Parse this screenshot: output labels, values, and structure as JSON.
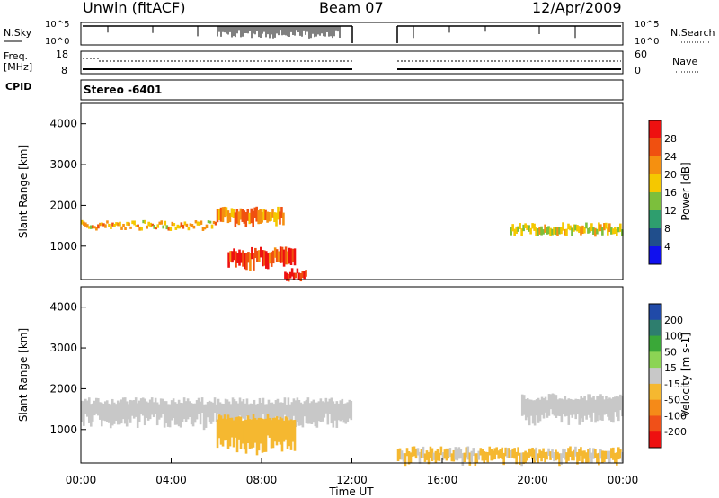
{
  "header": {
    "title": "Unwin (fitACF)",
    "beam": "Beam 07",
    "date": "12/Apr/2009",
    "stereo": "Stereo -6401"
  },
  "strips": {
    "n_sky": "N.Sky",
    "n_search": "N.Search",
    "freq": "Freq.",
    "freq_unit": "[MHz]",
    "cpid": "CPID",
    "nave": "Nave",
    "left_ticks_top": [
      "10^5",
      "10^0"
    ],
    "right_ticks_top": [
      "10^5",
      "10^0"
    ],
    "left_ticks_freq": [
      "18",
      "8"
    ],
    "right_ticks_nave": [
      "60",
      "0"
    ]
  },
  "time_axis": {
    "ticks": [
      "00:00",
      "04:00",
      "08:00",
      "12:00",
      "16:00",
      "20:00",
      "00:00"
    ],
    "label": "Time UT"
  },
  "panels": {
    "range_label": "Slant Range [km]",
    "range_ticks": [
      "4000",
      "3000",
      "2000",
      "1000"
    ]
  },
  "colorbars": {
    "power": {
      "label": "Power [dB]",
      "ticks": [
        "28",
        "24",
        "20",
        "16",
        "12",
        "8",
        "4"
      ],
      "colors": [
        "#ee1010",
        "#f05010",
        "#f59010",
        "#f5c800",
        "#7cbf3c",
        "#2e9e6e",
        "#204e8c",
        "#1010ee"
      ]
    },
    "velocity": {
      "label": "Velocity [m s-1]",
      "ticks": [
        "200",
        "100",
        "50",
        "15",
        "-15",
        "-50",
        "-100",
        "-200"
      ],
      "colors": [
        "#204aa8",
        "#2e7e6e",
        "#3aa838",
        "#8cd454",
        "#c8c8c8",
        "#f5b830",
        "#f58a18",
        "#f05018",
        "#ee1010"
      ]
    }
  },
  "chart_data": [
    {
      "type": "heatmap",
      "title": "Power",
      "xlabel": "Time UT",
      "ylabel": "Slant Range [km]",
      "x_range_hours": [
        0,
        24
      ],
      "ylim": [
        180,
        4500
      ],
      "colorbar": "Power [dB]",
      "data_gap_hours": [
        12,
        14
      ],
      "features": [
        {
          "time_start": "00:00",
          "time_end": "06:00",
          "range_km_start": 1450,
          "range_km_end": 1550,
          "power_db": 20
        },
        {
          "time_start": "06:00",
          "time_end": "09:00",
          "range_km_start": 1550,
          "range_km_end": 1900,
          "power_db": 22
        },
        {
          "time_start": "06:30",
          "time_end": "09:30",
          "range_km_start": 500,
          "range_km_end": 900,
          "power_db": 28
        },
        {
          "time_start": "09:00",
          "time_end": "10:00",
          "range_km_start": 200,
          "range_km_end": 400,
          "power_db": 28
        },
        {
          "time_start": "19:00",
          "time_end": "24:00",
          "range_km_start": 1300,
          "range_km_end": 1500,
          "power_db": 18
        }
      ]
    },
    {
      "type": "heatmap",
      "title": "Velocity",
      "xlabel": "Time UT",
      "ylabel": "Slant Range [km]",
      "x_range_hours": [
        0,
        24
      ],
      "ylim": [
        180,
        4500
      ],
      "colorbar": "Velocity [m s-1]",
      "data_gap_hours": [
        12,
        14
      ],
      "features": [
        {
          "time_start": "00:00",
          "time_end": "12:00",
          "range_km_start": 1100,
          "range_km_end": 1700,
          "velocity_ms": 0
        },
        {
          "time_start": "06:00",
          "time_end": "09:30",
          "range_km_start": 500,
          "range_km_end": 1300,
          "velocity_ms": -60
        },
        {
          "time_start": "14:00",
          "time_end": "24:00",
          "range_km_start": 200,
          "range_km_end": 500,
          "velocity_ms": -30
        },
        {
          "time_start": "19:30",
          "time_end": "24:00",
          "range_km_start": 1200,
          "range_km_end": 1800,
          "velocity_ms": 0
        }
      ]
    }
  ]
}
